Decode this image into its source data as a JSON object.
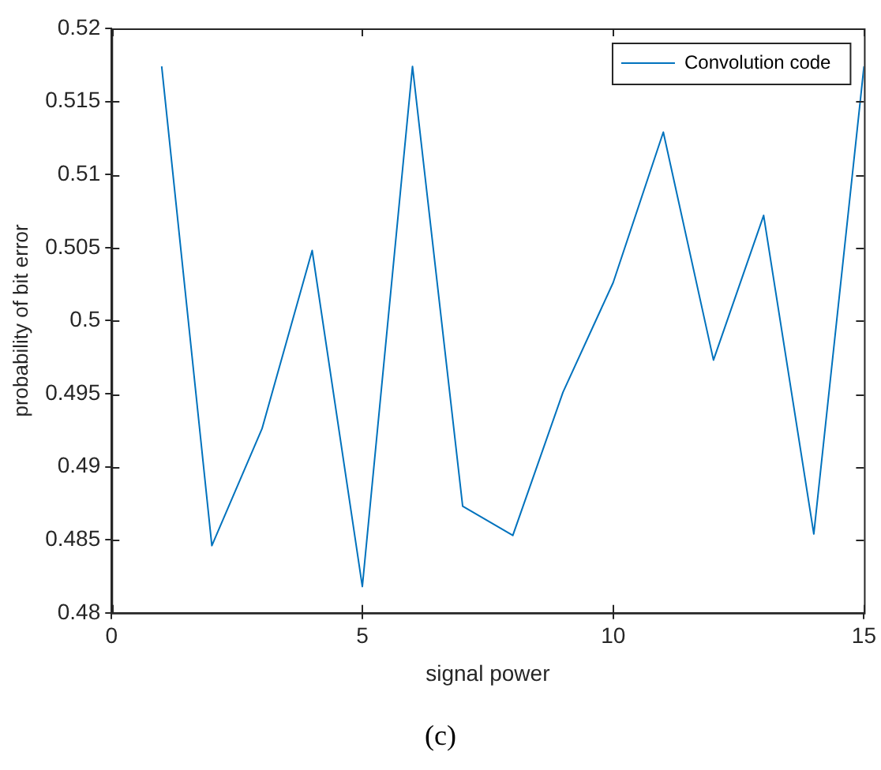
{
  "chart_data": {
    "type": "line",
    "xlabel": "signal power",
    "ylabel": "probability of bit error",
    "annotations": [
      "(c)"
    ],
    "x": [
      1,
      2,
      3,
      4,
      5,
      6,
      7,
      8,
      9,
      10,
      11,
      12,
      13,
      14,
      15
    ],
    "series": [
      {
        "name": "Convolution code",
        "color": "#0072bd",
        "values": [
          0.5174,
          0.4846,
          0.4926,
          0.5048,
          0.4818,
          0.5174,
          0.4873,
          0.4853,
          0.4951,
          0.5026,
          0.5129,
          0.4973,
          0.5072,
          0.4854,
          0.5174
        ]
      }
    ],
    "xlim": [
      0,
      15
    ],
    "xticks": [
      0,
      5,
      10,
      15
    ],
    "ylim": [
      0.48,
      0.52
    ],
    "yticks": [
      0.48,
      0.485,
      0.49,
      0.495,
      0.5,
      0.505,
      0.51,
      0.515,
      0.52
    ],
    "grid": false,
    "legend": "top right",
    "marker": "none",
    "line_style": "solid"
  }
}
